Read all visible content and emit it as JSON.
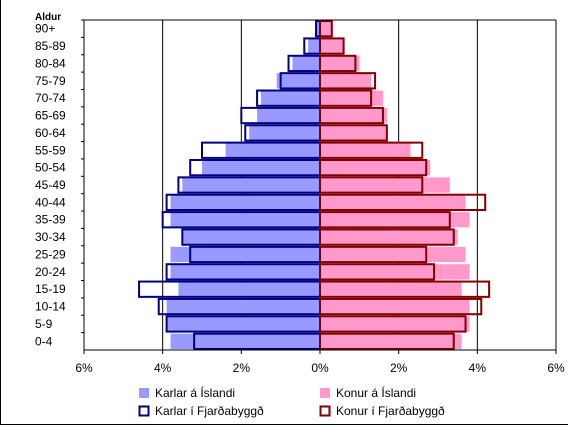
{
  "chart_data": {
    "type": "bar",
    "orientation": "horizontal",
    "subtype": "population-pyramid",
    "y_axis_title": "Aldur",
    "categories": [
      "90+",
      "85-89",
      "80-84",
      "75-79",
      "70-74",
      "65-69",
      "60-64",
      "55-59",
      "50-54",
      "45-49",
      "40-44",
      "35-39",
      "30-34",
      "25-29",
      "20-24",
      "15-19",
      "10-14",
      "5-9",
      "0-4"
    ],
    "xlim": [
      -6,
      6
    ],
    "x_ticks": [
      -6,
      -4,
      -2,
      0,
      2,
      4,
      6
    ],
    "x_tick_labels": [
      "6%",
      "4%",
      "2%",
      "0%",
      "2%",
      "4%",
      "6%"
    ],
    "grid": "vertical",
    "legend_position": "bottom",
    "colors": {
      "karlar_island": "#9999ff",
      "konur_island": "#ff99cc",
      "karlar_fjardabyggd": "#000080",
      "konur_fjardabyggd": "#800000"
    },
    "series": [
      {
        "name": "Karlar á Íslandi",
        "side": "left",
        "style": "filled",
        "values": [
          0.1,
          0.3,
          0.7,
          1.1,
          1.5,
          1.6,
          1.8,
          2.4,
          3.0,
          3.5,
          3.8,
          3.8,
          3.5,
          3.8,
          3.8,
          3.6,
          3.9,
          3.9,
          3.8
        ]
      },
      {
        "name": "Konur á Íslandi",
        "side": "right",
        "style": "filled",
        "values": [
          0.3,
          0.6,
          1.0,
          1.3,
          1.6,
          1.7,
          1.7,
          2.3,
          2.8,
          3.3,
          3.7,
          3.8,
          3.5,
          3.7,
          3.8,
          3.6,
          3.8,
          3.8,
          3.6
        ]
      },
      {
        "name": "Karlar í Fjarðabyggð",
        "side": "left",
        "style": "outline",
        "values": [
          0.1,
          0.4,
          0.8,
          1.0,
          1.6,
          2.0,
          1.9,
          3.0,
          3.3,
          3.6,
          3.9,
          4.0,
          3.5,
          3.3,
          3.9,
          4.6,
          4.1,
          3.9,
          3.2
        ]
      },
      {
        "name": "Konur í Fjarðabyggð",
        "side": "right",
        "style": "outline",
        "values": [
          0.3,
          0.6,
          0.9,
          1.4,
          1.3,
          1.6,
          1.7,
          2.6,
          2.7,
          2.6,
          4.2,
          3.3,
          3.4,
          2.7,
          2.9,
          4.3,
          4.1,
          3.7,
          3.4
        ]
      }
    ]
  }
}
